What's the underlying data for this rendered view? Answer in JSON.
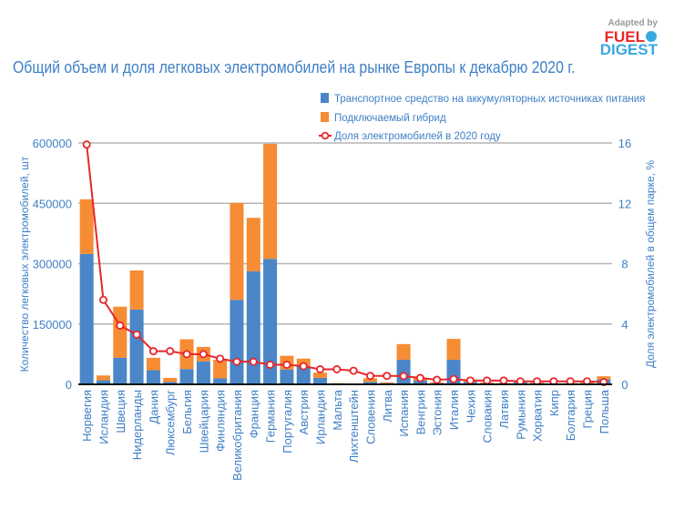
{
  "logo": {
    "line1": "Adapted by",
    "line2": "FUEL",
    "line3": "DIGEST"
  },
  "chart_data": {
    "type": "bar",
    "stacked": true,
    "title": "Общий объем и доля легковых электромобилей на рынке Европы к декабрю 2020 г.",
    "ylabel": "Количество легковых электромобилей, шт",
    "y2label": "Доля электромобилей в общем парке, %",
    "ylim": [
      0,
      600000
    ],
    "yticks": [
      0,
      150000,
      300000,
      450000,
      600000
    ],
    "y2lim": [
      0,
      16
    ],
    "y2ticks": [
      0,
      4,
      8,
      12,
      16
    ],
    "grid": true,
    "legend_position": "top-right",
    "categories": [
      "Норвегия",
      "Исландия",
      "Швеция",
      "Нидерланды",
      "Дания",
      "Люксембург",
      "Бельгия",
      "Швейцария",
      "Финляндия",
      "Великобритания",
      "Франция",
      "Германия",
      "Португалия",
      "Австрия",
      "Ирландия",
      "Мальта",
      "Лихтенштейн",
      "Словения",
      "Литва",
      "Испания",
      "Венгрия",
      "Эстония",
      "Италия",
      "Чехия",
      "Словакия",
      "Латвия",
      "Румыния",
      "Хорватия",
      "Кипр",
      "Болгария",
      "Греция",
      "Польша"
    ],
    "series": [
      {
        "name": "Транспортное средство на аккумуляторных источниках питания",
        "kind": "bar",
        "color": "#4a86c8",
        "values": [
          324000,
          10000,
          66000,
          186000,
          35000,
          6000,
          38000,
          57000,
          15000,
          210000,
          281000,
          312000,
          37000,
          46000,
          16000,
          2000,
          1000,
          6000,
          3000,
          61000,
          9000,
          3000,
          61000,
          6000,
          3000,
          2000,
          5000,
          3000,
          1000,
          2000,
          3000,
          12000
        ]
      },
      {
        "name": "Подключаемый гибрид",
        "kind": "bar",
        "color": "#f68c34",
        "values": [
          136000,
          12000,
          127000,
          97000,
          31000,
          10000,
          74000,
          36000,
          46000,
          241000,
          133000,
          286000,
          34000,
          18000,
          13000,
          1000,
          1000,
          9000,
          2000,
          39000,
          8000,
          2000,
          52000,
          6000,
          2000,
          1000,
          2000,
          2000,
          1000,
          1000,
          4000,
          8000
        ]
      },
      {
        "name": "Доля электромобилей в 2020 году",
        "kind": "line",
        "axis": "right",
        "color": "#e8262b",
        "values": [
          15.9,
          5.6,
          3.9,
          3.3,
          2.2,
          2.2,
          2.0,
          2.0,
          1.7,
          1.5,
          1.5,
          1.3,
          1.3,
          1.2,
          1.0,
          1.0,
          0.9,
          0.56,
          0.56,
          0.55,
          0.42,
          0.3,
          0.35,
          0.25,
          0.25,
          0.25,
          0.2,
          0.2,
          0.2,
          0.2,
          0.2,
          0.15
        ]
      }
    ]
  }
}
